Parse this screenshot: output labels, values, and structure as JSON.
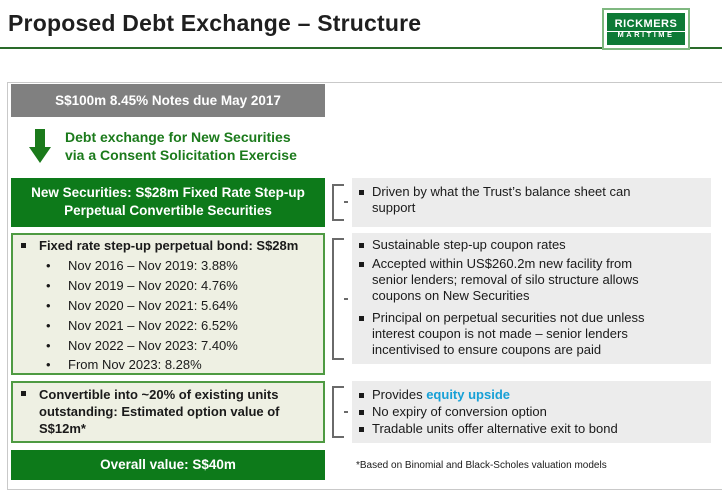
{
  "header": {
    "title": "Proposed Debt Exchange – Structure",
    "logo_top": "RICKMERS",
    "logo_bottom": "MARITIME"
  },
  "notes_box": {
    "label": "S$100m 8.45% Notes due May 2017"
  },
  "exchange": {
    "line1": "Debt exchange for New Securities",
    "line2": "via a Consent Solicitation Exercise"
  },
  "new_securities": {
    "line1": "New Securities: S$28m Fixed Rate Step-up",
    "line2": "Perpetual Convertible Securities"
  },
  "bond": {
    "heading": "Fixed rate step-up perpetual bond: S$28m",
    "rates": [
      "Nov 2016 – Nov 2019: 3.88%",
      "Nov 2019 – Nov 2020: 4.76%",
      "Nov 2020 – Nov 2021: 5.64%",
      "Nov 2021 – Nov 2022: 6.52%",
      "Nov 2022 – Nov 2023: 7.40%",
      "From Nov 2023: 8.28%"
    ]
  },
  "convertible": {
    "line1": "Convertible into ~20% of existing units",
    "line2": "outstanding: Estimated option value of",
    "line3": "S$12m*"
  },
  "overall": {
    "label": "Overall value: S$40m"
  },
  "right": {
    "box1": [
      {
        "l1": "Driven by what the Trust’s balance sheet can",
        "l2": "support"
      }
    ],
    "box2": [
      {
        "l1": "Sustainable step-up coupon rates"
      },
      {
        "l1": "Accepted within US$260.2m new facility from",
        "l2": "senior lenders; removal of silo structure allows",
        "l3": "coupons on New Securities"
      },
      {
        "l1": "Principal on perpetual securities not due unless",
        "l2": "interest coupon is not made – senior lenders",
        "l3": "incentivised to ensure coupons are paid"
      }
    ],
    "box3": {
      "b1_prefix": "Provides ",
      "b1_accent": "equity upside",
      "b2": "No expiry of conversion option",
      "b3": "Tradable units offer alternative exit to bond"
    }
  },
  "footnote": "*Based on Binomial and Black-Scholes valuation models",
  "colors": {
    "brand_green": "#0d7a1a",
    "accent_blue": "#17a0d6",
    "notes_grey": "#808080",
    "panel_grey": "#ececec"
  }
}
